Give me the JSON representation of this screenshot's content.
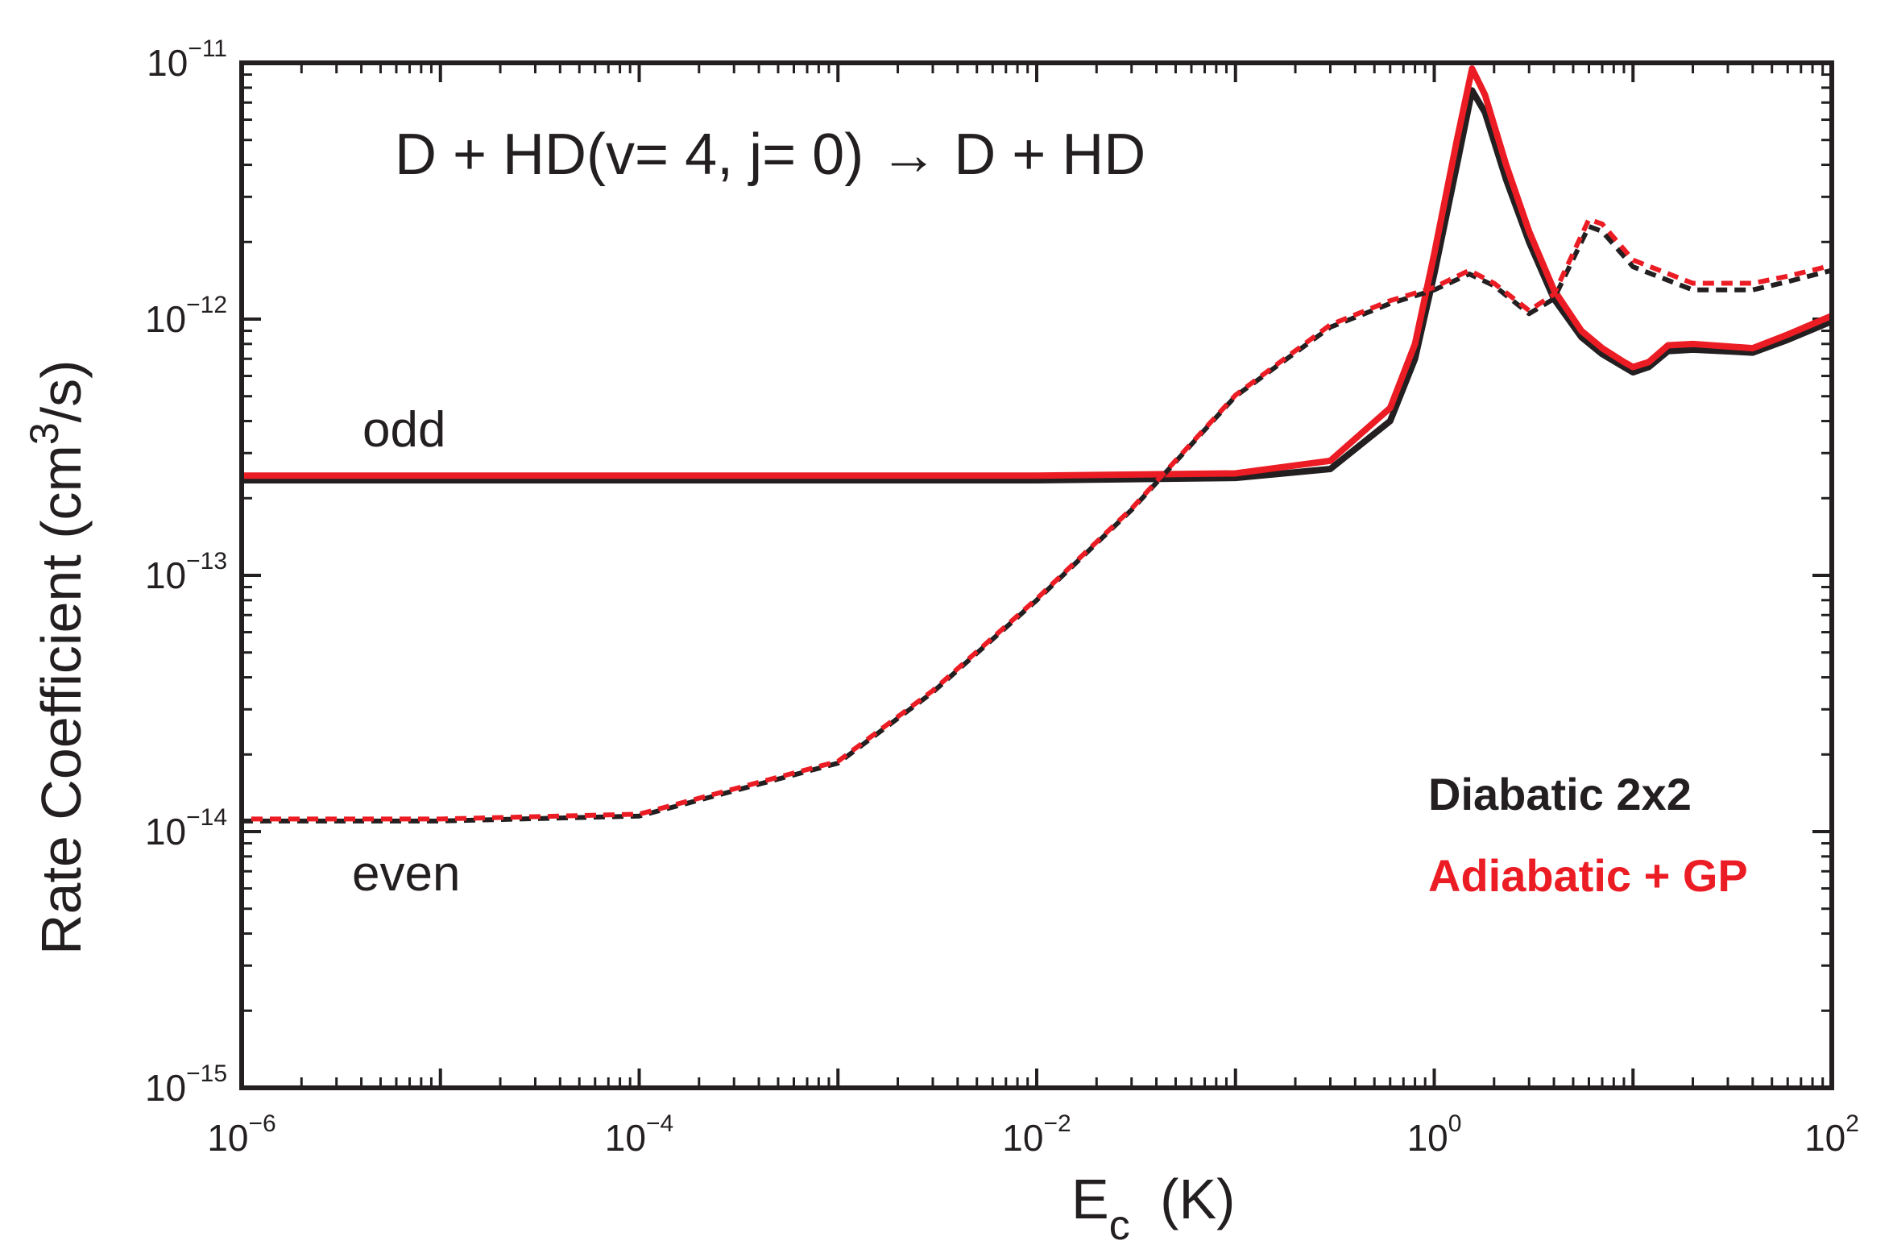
{
  "chart_data": {
    "type": "line",
    "title": "D + HD(v= 4, j= 0) → D + HD",
    "xlabel": {
      "main": "E",
      "sub": "c",
      "unit": "(K)"
    },
    "ylabel": {
      "prefix": "Rate Coefficient  (cm",
      "sup": "3",
      "suffix": "/s)"
    },
    "xscale": "log",
    "yscale": "log",
    "xlim_exp": [
      -6,
      2
    ],
    "ylim_exp": [
      -15,
      -11
    ],
    "x_ticks": [
      {
        "base": "10",
        "exp": "−6",
        "value": -6
      },
      {
        "base": "10",
        "exp": "−4",
        "value": -4
      },
      {
        "base": "10",
        "exp": "−2",
        "value": -2
      },
      {
        "base": "10",
        "exp": "0",
        "value": 0
      },
      {
        "base": "10",
        "exp": "2",
        "value": 2
      }
    ],
    "y_ticks": [
      {
        "base": "10",
        "exp": "−11",
        "value": -11
      },
      {
        "base": "10",
        "exp": "−12",
        "value": -12
      },
      {
        "base": "10",
        "exp": "−13",
        "value": -13
      },
      {
        "base": "10",
        "exp": "−14",
        "value": -14
      },
      {
        "base": "10",
        "exp": "−15",
        "value": -15
      }
    ],
    "annotations": {
      "odd": "odd",
      "even": "even"
    },
    "legend": {
      "position": "lower-right",
      "entries": [
        {
          "label": "Diabatic 2x2",
          "color": "#231f20"
        },
        {
          "label": "Adiabatic + GP",
          "color": "#ec1c24"
        }
      ]
    },
    "series": [
      {
        "name": "Diabatic 2x2 odd",
        "parity": "odd",
        "style": "solid",
        "color": "#231f20",
        "points": [
          [
            1e-06,
            2.35e-13
          ],
          [
            0.0001,
            2.35e-13
          ],
          [
            0.01,
            2.35e-13
          ],
          [
            0.1,
            2.4e-13
          ],
          [
            0.3,
            2.6e-13
          ],
          [
            0.6,
            4e-13
          ],
          [
            0.8,
            7e-13
          ],
          [
            1.0,
            1.5e-12
          ],
          [
            1.3,
            4e-12
          ],
          [
            1.55,
            7.8e-12
          ],
          [
            1.8,
            6.4e-12
          ],
          [
            2.3,
            3.5e-12
          ],
          [
            3,
            2e-12
          ],
          [
            4,
            1.2e-12
          ],
          [
            5.5,
            8.5e-13
          ],
          [
            7,
            7.3e-13
          ],
          [
            9,
            6.5e-13
          ],
          [
            10,
            6.2e-13
          ],
          [
            12,
            6.5e-13
          ],
          [
            15,
            7.5e-13
          ],
          [
            20,
            7.6e-13
          ],
          [
            40,
            7.4e-13
          ],
          [
            60,
            8.3e-13
          ],
          [
            100,
            9.8e-13
          ]
        ]
      },
      {
        "name": "Adiabatic + GP odd",
        "parity": "odd",
        "style": "solid",
        "color": "#ec1c24",
        "points": [
          [
            1e-06,
            2.45e-13
          ],
          [
            0.0001,
            2.45e-13
          ],
          [
            0.01,
            2.45e-13
          ],
          [
            0.1,
            2.5e-13
          ],
          [
            0.3,
            2.8e-13
          ],
          [
            0.6,
            4.5e-13
          ],
          [
            0.8,
            8e-13
          ],
          [
            1.0,
            1.8e-12
          ],
          [
            1.3,
            5e-12
          ],
          [
            1.55,
            9.5e-12
          ],
          [
            1.8,
            7.5e-12
          ],
          [
            2.3,
            4e-12
          ],
          [
            3,
            2.2e-12
          ],
          [
            4,
            1.3e-12
          ],
          [
            5.5,
            9e-13
          ],
          [
            7,
            7.7e-13
          ],
          [
            9,
            6.8e-13
          ],
          [
            10,
            6.5e-13
          ],
          [
            12,
            6.8e-13
          ],
          [
            15,
            7.9e-13
          ],
          [
            20,
            8e-13
          ],
          [
            40,
            7.7e-13
          ],
          [
            60,
            8.7e-13
          ],
          [
            100,
            1.03e-12
          ]
        ]
      },
      {
        "name": "Diabatic 2x2 even",
        "parity": "even",
        "style": "dashed",
        "color": "#231f20",
        "points": [
          [
            1e-06,
            1.1e-14
          ],
          [
            1e-05,
            1.1e-14
          ],
          [
            0.0001,
            1.15e-14
          ],
          [
            0.001,
            1.85e-14
          ],
          [
            0.003,
            3.5e-14
          ],
          [
            0.01,
            8e-14
          ],
          [
            0.03,
            1.8e-13
          ],
          [
            0.1,
            5e-13
          ],
          [
            0.3,
            9.3e-13
          ],
          [
            0.6,
            1.15e-12
          ],
          [
            1.0,
            1.3e-12
          ],
          [
            1.5,
            1.5e-12
          ],
          [
            2,
            1.35e-12
          ],
          [
            3,
            1.05e-12
          ],
          [
            4,
            1.2e-12
          ],
          [
            6,
            2.3e-12
          ],
          [
            7,
            2.2e-12
          ],
          [
            10,
            1.6e-12
          ],
          [
            20,
            1.3e-12
          ],
          [
            40,
            1.3e-12
          ],
          [
            60,
            1.4e-12
          ],
          [
            100,
            1.55e-12
          ]
        ]
      },
      {
        "name": "Adiabatic + GP even",
        "parity": "even",
        "style": "dashed",
        "color": "#ec1c24",
        "points": [
          [
            1e-06,
            1.12e-14
          ],
          [
            1e-05,
            1.12e-14
          ],
          [
            0.0001,
            1.17e-14
          ],
          [
            0.001,
            1.88e-14
          ],
          [
            0.003,
            3.55e-14
          ],
          [
            0.01,
            8.1e-14
          ],
          [
            0.03,
            1.82e-13
          ],
          [
            0.1,
            5.05e-13
          ],
          [
            0.3,
            9.5e-13
          ],
          [
            0.6,
            1.18e-12
          ],
          [
            1.0,
            1.33e-12
          ],
          [
            1.5,
            1.55e-12
          ],
          [
            2,
            1.38e-12
          ],
          [
            3,
            1.08e-12
          ],
          [
            4,
            1.25e-12
          ],
          [
            6,
            2.45e-12
          ],
          [
            7,
            2.35e-12
          ],
          [
            10,
            1.7e-12
          ],
          [
            20,
            1.38e-12
          ],
          [
            40,
            1.38e-12
          ],
          [
            60,
            1.47e-12
          ],
          [
            100,
            1.62e-12
          ]
        ]
      }
    ]
  }
}
